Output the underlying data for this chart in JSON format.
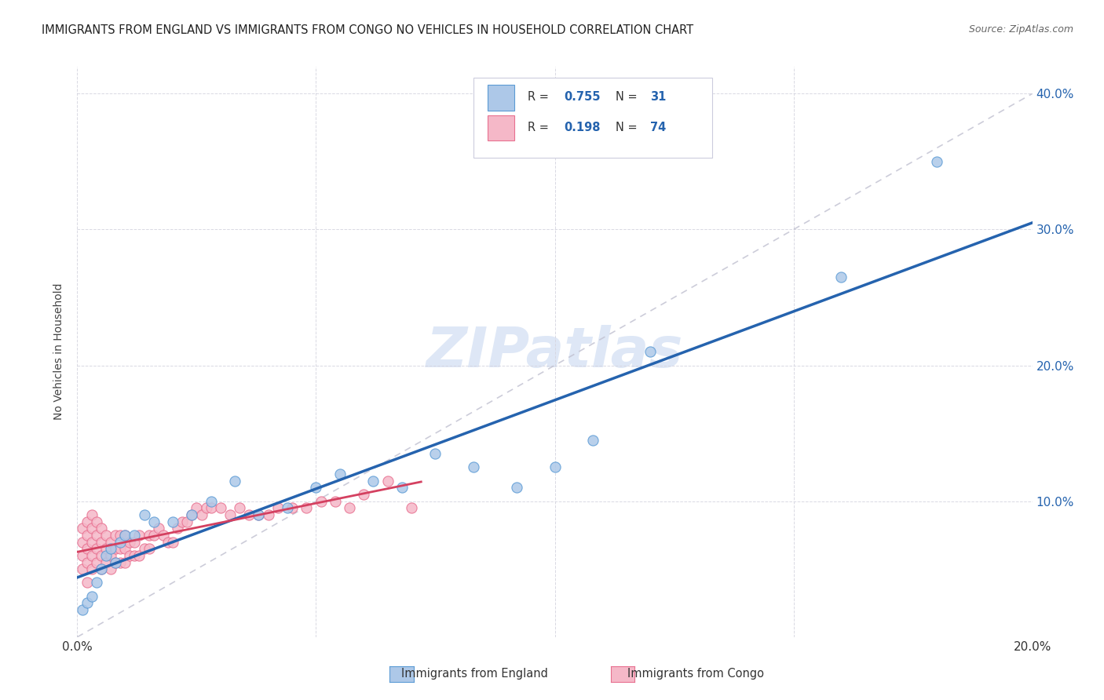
{
  "title": "IMMIGRANTS FROM ENGLAND VS IMMIGRANTS FROM CONGO NO VEHICLES IN HOUSEHOLD CORRELATION CHART",
  "source": "Source: ZipAtlas.com",
  "ylabel": "No Vehicles in Household",
  "legend_bottom": [
    "Immigrants from England",
    "Immigrants from Congo"
  ],
  "england_R": 0.755,
  "england_N": 31,
  "congo_R": 0.198,
  "congo_N": 74,
  "xlim": [
    0.0,
    0.2
  ],
  "ylim": [
    0.0,
    0.42
  ],
  "xticks": [
    0.0,
    0.05,
    0.1,
    0.15,
    0.2
  ],
  "yticks": [
    0.0,
    0.1,
    0.2,
    0.3,
    0.4
  ],
  "england_color": "#adc8e8",
  "england_edge_color": "#5b9bd5",
  "england_line_color": "#2563ae",
  "congo_color": "#f5b8c8",
  "congo_edge_color": "#e87090",
  "congo_line_color": "#d44060",
  "diagonal_color": "#c0c0d0",
  "watermark_color": "#c8d8f0",
  "england_x": [
    0.001,
    0.002,
    0.003,
    0.004,
    0.005,
    0.006,
    0.007,
    0.008,
    0.009,
    0.01,
    0.012,
    0.014,
    0.016,
    0.02,
    0.024,
    0.028,
    0.033,
    0.038,
    0.044,
    0.05,
    0.055,
    0.062,
    0.068,
    0.075,
    0.083,
    0.092,
    0.1,
    0.108,
    0.12,
    0.16,
    0.18
  ],
  "england_y": [
    0.02,
    0.025,
    0.03,
    0.04,
    0.05,
    0.06,
    0.065,
    0.055,
    0.07,
    0.075,
    0.075,
    0.09,
    0.085,
    0.085,
    0.09,
    0.1,
    0.115,
    0.09,
    0.095,
    0.11,
    0.12,
    0.115,
    0.11,
    0.135,
    0.125,
    0.11,
    0.125,
    0.145,
    0.21,
    0.265,
    0.35
  ],
  "congo_x": [
    0.001,
    0.001,
    0.001,
    0.001,
    0.002,
    0.002,
    0.002,
    0.002,
    0.002,
    0.003,
    0.003,
    0.003,
    0.003,
    0.003,
    0.004,
    0.004,
    0.004,
    0.004,
    0.005,
    0.005,
    0.005,
    0.005,
    0.006,
    0.006,
    0.006,
    0.007,
    0.007,
    0.007,
    0.008,
    0.008,
    0.008,
    0.009,
    0.009,
    0.009,
    0.01,
    0.01,
    0.01,
    0.011,
    0.011,
    0.012,
    0.012,
    0.013,
    0.013,
    0.014,
    0.015,
    0.015,
    0.016,
    0.017,
    0.018,
    0.019,
    0.02,
    0.021,
    0.022,
    0.023,
    0.024,
    0.025,
    0.026,
    0.027,
    0.028,
    0.03,
    0.032,
    0.034,
    0.036,
    0.038,
    0.04,
    0.042,
    0.045,
    0.048,
    0.051,
    0.054,
    0.057,
    0.06,
    0.065,
    0.07
  ],
  "congo_y": [
    0.05,
    0.06,
    0.07,
    0.08,
    0.04,
    0.055,
    0.065,
    0.075,
    0.085,
    0.05,
    0.06,
    0.07,
    0.08,
    0.09,
    0.055,
    0.065,
    0.075,
    0.085,
    0.05,
    0.06,
    0.07,
    0.08,
    0.055,
    0.065,
    0.075,
    0.05,
    0.06,
    0.07,
    0.055,
    0.065,
    0.075,
    0.055,
    0.065,
    0.075,
    0.055,
    0.065,
    0.075,
    0.06,
    0.07,
    0.06,
    0.07,
    0.06,
    0.075,
    0.065,
    0.065,
    0.075,
    0.075,
    0.08,
    0.075,
    0.07,
    0.07,
    0.08,
    0.085,
    0.085,
    0.09,
    0.095,
    0.09,
    0.095,
    0.095,
    0.095,
    0.09,
    0.095,
    0.09,
    0.09,
    0.09,
    0.095,
    0.095,
    0.095,
    0.1,
    0.1,
    0.095,
    0.105,
    0.115,
    0.095
  ],
  "congo_line_x_end": 0.072,
  "england_line_x_start": 0.0,
  "england_line_x_end": 0.2
}
